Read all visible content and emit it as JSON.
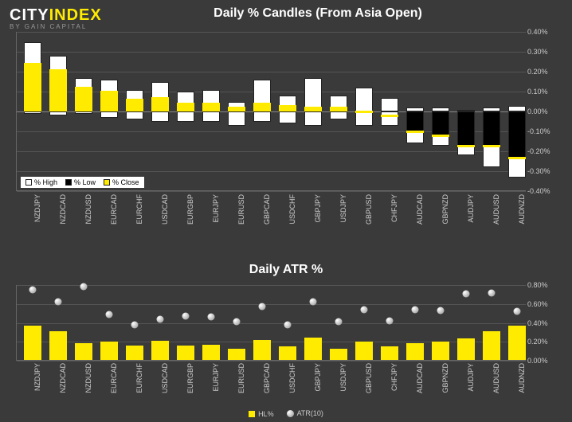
{
  "logo": {
    "left": "CITY",
    "right": "INDEX",
    "sub": "BY GAIN CAPITAL"
  },
  "chart1": {
    "title": "Daily % Candles (From Asia Open)",
    "ymin": -0.4,
    "ymax": 0.4,
    "yticks": [
      0.4,
      0.3,
      0.2,
      0.1,
      0.0,
      -0.1,
      -0.2,
      -0.3,
      -0.4
    ],
    "ytick_labels": [
      "0.40%",
      "0.30%",
      "0.20%",
      "0.10%",
      "0.00%",
      "-0.10%",
      "-0.20%",
      "-0.30%",
      "-0.40%"
    ],
    "categories": [
      "NZDJPY",
      "NZDCAD",
      "NZDUSD",
      "EURCAD",
      "EURCHF",
      "USDCAD",
      "EURGBP",
      "EURJPY",
      "EURUSD",
      "GBPCAD",
      "USDCHF",
      "GBPJPY",
      "USDJPY",
      "GBPUSD",
      "CHFJPY",
      "AUDCAD",
      "GBPNZD",
      "AUDJPY",
      "AUDUSD",
      "AUDNZD"
    ],
    "data": [
      {
        "high": 0.35,
        "low": -0.01,
        "close": 0.24,
        "fill": "up"
      },
      {
        "high": 0.28,
        "low": -0.02,
        "close": 0.21,
        "fill": "up"
      },
      {
        "high": 0.17,
        "low": -0.01,
        "close": 0.12,
        "fill": "up"
      },
      {
        "high": 0.16,
        "low": -0.03,
        "close": 0.1,
        "fill": "up"
      },
      {
        "high": 0.11,
        "low": -0.04,
        "close": 0.06,
        "fill": "up"
      },
      {
        "high": 0.15,
        "low": -0.05,
        "close": 0.07,
        "fill": "up"
      },
      {
        "high": 0.1,
        "low": -0.05,
        "close": 0.04,
        "fill": "up"
      },
      {
        "high": 0.11,
        "low": -0.05,
        "close": 0.04,
        "fill": "up"
      },
      {
        "high": 0.05,
        "low": -0.07,
        "close": 0.02,
        "fill": "up"
      },
      {
        "high": 0.16,
        "low": -0.05,
        "close": 0.04,
        "fill": "up"
      },
      {
        "high": 0.08,
        "low": -0.06,
        "close": 0.03,
        "fill": "up"
      },
      {
        "high": 0.17,
        "low": -0.07,
        "close": 0.02,
        "fill": "up"
      },
      {
        "high": 0.08,
        "low": -0.04,
        "close": 0.02,
        "fill": "up"
      },
      {
        "high": 0.12,
        "low": -0.07,
        "close": 0.0,
        "fill": "up"
      },
      {
        "high": 0.07,
        "low": -0.07,
        "close": -0.02,
        "fill": "up"
      },
      {
        "high": 0.02,
        "low": -0.16,
        "close": -0.1,
        "fill": "down"
      },
      {
        "high": 0.02,
        "low": -0.17,
        "close": -0.12,
        "fill": "down"
      },
      {
        "high": 0.01,
        "low": -0.22,
        "close": -0.17,
        "fill": "down"
      },
      {
        "high": 0.02,
        "low": -0.28,
        "close": -0.17,
        "fill": "down"
      },
      {
        "high": 0.03,
        "low": -0.33,
        "close": -0.23,
        "fill": "down"
      }
    ],
    "colors": {
      "up_outline": "#ffffff",
      "up_fill": "#ffffff",
      "down_fill": "#000000",
      "close": "#ffeb00"
    },
    "legend": [
      {
        "label": "% High",
        "color": "#ffffff",
        "border": "#222"
      },
      {
        "label": "% Low",
        "color": "#000000",
        "border": "#222"
      },
      {
        "label": "% Close",
        "color": "#ffeb00",
        "border": "#222"
      }
    ]
  },
  "chart2": {
    "title": "Daily ATR %",
    "ymin": 0.0,
    "ymax": 0.8,
    "yticks": [
      0.8,
      0.6,
      0.4,
      0.2,
      0.0
    ],
    "ytick_labels": [
      "0.80%",
      "0.60%",
      "0.40%",
      "0.20%",
      "0.00%"
    ],
    "categories": [
      "NZDJPY",
      "NZDCAD",
      "NZDUSD",
      "EURCAD",
      "EURCHF",
      "USDCAD",
      "EURGBP",
      "EURJPY",
      "EURUSD",
      "GBPCAD",
      "USDCHF",
      "GBPJPY",
      "USDJPY",
      "GBPUSD",
      "CHFJPY",
      "AUDCAD",
      "GBPNZD",
      "AUDJPY",
      "AUDUSD",
      "AUDNZD"
    ],
    "hl_pct": [
      0.36,
      0.3,
      0.18,
      0.19,
      0.15,
      0.2,
      0.15,
      0.16,
      0.12,
      0.21,
      0.14,
      0.24,
      0.12,
      0.19,
      0.14,
      0.18,
      0.19,
      0.23,
      0.3,
      0.36
    ],
    "atr_10": [
      0.75,
      0.62,
      0.78,
      0.49,
      0.38,
      0.44,
      0.47,
      0.46,
      0.41,
      0.57,
      0.38,
      0.62,
      0.41,
      0.54,
      0.42,
      0.54,
      0.53,
      0.71,
      0.72,
      0.52
    ],
    "colors": {
      "bar": "#ffeb00",
      "dot": "#dddddd"
    },
    "legend": [
      {
        "label": "HL%",
        "type": "sq",
        "color": "#ffeb00"
      },
      {
        "label": "ATR(10)",
        "type": "dot",
        "color": "#dddddd"
      }
    ]
  },
  "bg": "#3a3a3a",
  "grid": "#555555",
  "text": "#cccccc"
}
